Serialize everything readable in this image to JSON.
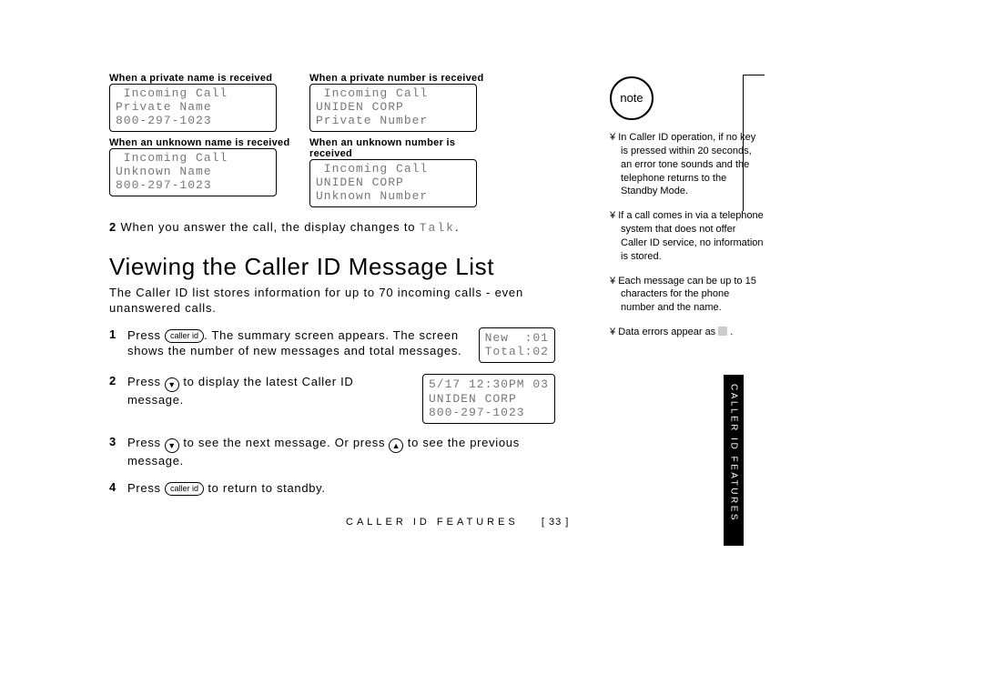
{
  "lcd_examples": {
    "row1": {
      "left": {
        "label": "When a private name is received",
        "line1": " Incoming Call",
        "line2": "Private Name",
        "line3": "800-297-1023"
      },
      "right": {
        "label": "When a private number is received",
        "line1": " Incoming Call",
        "line2": "UNIDEN CORP",
        "line3": "Private Number"
      }
    },
    "row2": {
      "left": {
        "label": "When an unknown name is received",
        "line1": " Incoming Call",
        "line2": "Unknown Name",
        "line3": "800-297-1023"
      },
      "right": {
        "label": "When an unknown number is received",
        "line1": " Incoming Call",
        "line2": "UNIDEN CORP",
        "line3": "Unknown Number"
      }
    }
  },
  "answer_step": {
    "num": "2",
    "text_before": "When you answer the call, the display changes to ",
    "talk": "Talk",
    "text_after": "."
  },
  "section": {
    "title": "Viewing the Caller ID Message List",
    "intro": "The Caller ID list stores information for up to 70 incoming calls - even unanswered calls."
  },
  "steps": [
    {
      "num": "1",
      "parts": [
        "Press ",
        {
          "btn": "caller id"
        },
        ". The summary screen appears. The screen shows the number of new messages and total messages."
      ],
      "lcd": {
        "line1": "New  :01",
        "line2": "Total:02"
      }
    },
    {
      "num": "2",
      "parts": [
        "Press ",
        {
          "round": "▼"
        },
        " to display the latest Caller ID message."
      ],
      "lcd": {
        "line1": "5/17 12:30PM 03",
        "line2": "UNIDEN CORP",
        "line3": "800-297-1023"
      }
    },
    {
      "num": "3",
      "parts": [
        "Press ",
        {
          "round": "▼"
        },
        " to see the next message. Or press ",
        {
          "round": "▲"
        },
        " to see the previous message."
      ]
    },
    {
      "num": "4",
      "parts": [
        "Press ",
        {
          "btn": "caller id"
        },
        " to return to standby."
      ]
    }
  ],
  "sidebar": {
    "note_label": "note",
    "notes": [
      "In Caller ID operation, if no key is pressed within 20 seconds, an error tone sounds and the telephone returns to the Standby Mode.",
      "If a call comes in via a telephone system that does not offer Caller ID service, no information is stored.",
      "Each message can be up to 15 characters for the phone number and the name.",
      "Data errors appear as"
    ]
  },
  "footer": {
    "label": "CALLER ID FEATURES",
    "page": "[ 33 ]"
  },
  "tab": "CALLER ID FEATURES"
}
